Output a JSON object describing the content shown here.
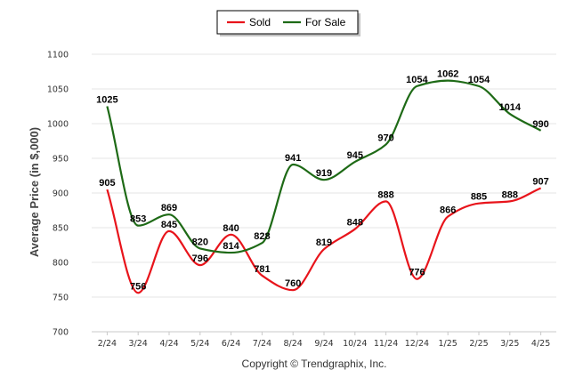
{
  "chart_data": {
    "type": "line",
    "ylabel": "Average Price (in $,000)",
    "ylim": [
      700,
      1100
    ],
    "yticks": [
      700,
      750,
      800,
      850,
      900,
      950,
      1000,
      1050,
      1100
    ],
    "categories": [
      "2/24",
      "3/24",
      "4/24",
      "5/24",
      "6/24",
      "7/24",
      "8/24",
      "9/24",
      "10/24",
      "11/24",
      "12/24",
      "1/25",
      "2/25",
      "3/25",
      "4/25"
    ],
    "series": [
      {
        "name": "Sold",
        "color": "#e8141b",
        "values": [
          905,
          756,
          845,
          796,
          840,
          781,
          760,
          819,
          848,
          888,
          776,
          866,
          885,
          888,
          907
        ]
      },
      {
        "name": "For Sale",
        "color": "#1e6a16",
        "values": [
          1025,
          853,
          869,
          820,
          814,
          828,
          941,
          919,
          945,
          970,
          1054,
          1062,
          1054,
          1014,
          990
        ]
      }
    ],
    "legend_position": "top-center",
    "grid": true,
    "credit": "Copyright © Trendgraphix, Inc."
  }
}
